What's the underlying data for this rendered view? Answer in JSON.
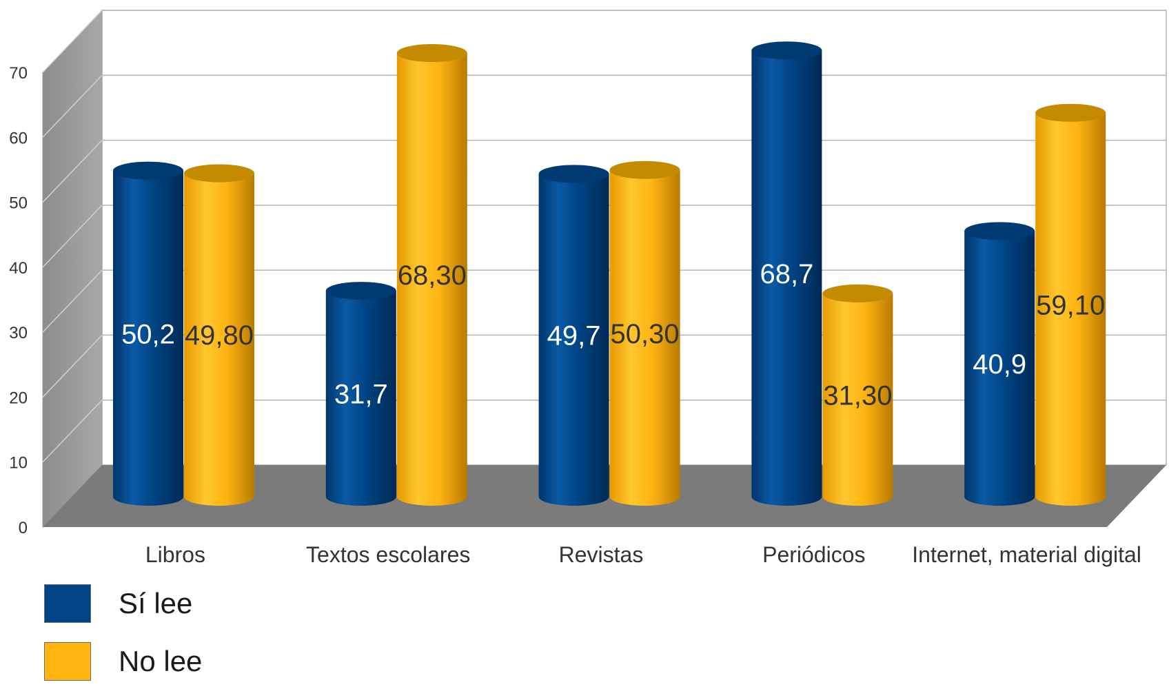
{
  "chart_data": {
    "type": "bar",
    "title": "",
    "xlabel": "",
    "ylabel": "",
    "ylim": [
      0,
      70
    ],
    "yticks": [
      "0",
      "10",
      "20",
      "30",
      "40",
      "50",
      "60",
      "70"
    ],
    "grid": true,
    "categories": [
      "Libros",
      "Textos escolares",
      "Revistas",
      "Periódicos",
      "Internet, material digital"
    ],
    "series": [
      {
        "name": "Sí lee",
        "color": "#004586",
        "values": [
          50.2,
          31.7,
          49.7,
          68.7,
          40.9
        ],
        "labels": [
          "50,2",
          "31,7",
          "49,7",
          "68,7",
          "40,9"
        ]
      },
      {
        "name": "No lee",
        "color": "#ffb412",
        "values": [
          49.8,
          68.3,
          50.3,
          31.3,
          59.1
        ],
        "labels": [
          "49,80",
          "68,30",
          "50,30",
          "31,30",
          "59,10"
        ]
      }
    ],
    "legend_position": "bottom-left",
    "style": "3d-cylinder"
  }
}
